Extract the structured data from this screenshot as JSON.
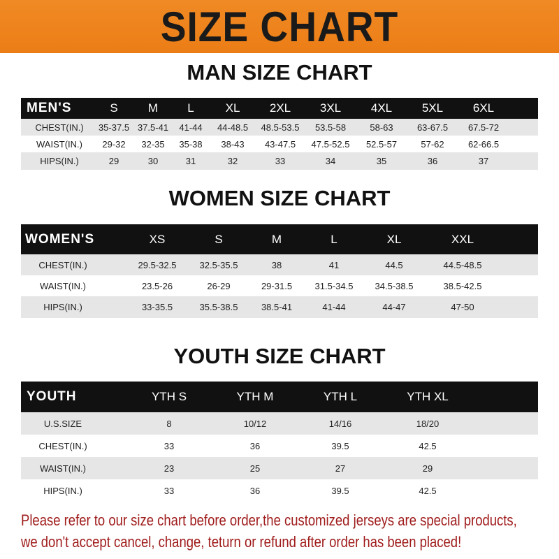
{
  "banner": "SIZE CHART",
  "men": {
    "title": "MAN SIZE CHART",
    "header": [
      "MEN'S",
      "S",
      "M",
      "L",
      "XL",
      "2XL",
      "3XL",
      "4XL",
      "5XL",
      "6XL"
    ],
    "rows": [
      [
        "CHEST(IN.)",
        "35-37.5",
        "37.5-41",
        "41-44",
        "44-48.5",
        "48.5-53.5",
        "53.5-58",
        "58-63",
        "63-67.5",
        "67.5-72"
      ],
      [
        "WAIST(IN.)",
        "29-32",
        "32-35",
        "35-38",
        "38-43",
        "43-47.5",
        "47.5-52.5",
        "52.5-57",
        "57-62",
        "62-66.5"
      ],
      [
        "HIPS(IN.)",
        "29",
        "30",
        "31",
        "32",
        "33",
        "34",
        "35",
        "36",
        "37"
      ]
    ]
  },
  "women": {
    "title": "WOMEN SIZE CHART",
    "header": [
      "WOMEN'S",
      "XS",
      "S",
      "M",
      "L",
      "XL",
      "XXL"
    ],
    "rows": [
      [
        "CHEST(IN.)",
        "29.5-32.5",
        "32.5-35.5",
        "38",
        "41",
        "44.5",
        "44.5-48.5"
      ],
      [
        "WAIST(IN.)",
        "23.5-26",
        "26-29",
        "29-31.5",
        "31.5-34.5",
        "34.5-38.5",
        "38.5-42.5"
      ],
      [
        "HIPS(IN.)",
        "33-35.5",
        "35.5-38.5",
        "38.5-41",
        "41-44",
        "44-47",
        "47-50"
      ]
    ]
  },
  "youth": {
    "title": "YOUTH SIZE CHART",
    "header": [
      "YOUTH",
      "YTH S",
      "YTH M",
      "YTH L",
      "YTH XL"
    ],
    "rows": [
      [
        "U.S.SIZE",
        "8",
        "10/12",
        "14/16",
        "18/20"
      ],
      [
        "CHEST(IN.)",
        "33",
        "36",
        "39.5",
        "42.5"
      ],
      [
        "WAIST(IN.)",
        "23",
        "25",
        "27",
        "29"
      ],
      [
        "HIPS(IN.)",
        "33",
        "36",
        "39.5",
        "42.5"
      ]
    ]
  },
  "notice": {
    "line1": "Please refer to our size chart before order,the customized jerseys are special products,",
    "line2": "we don't accept cancel, change, teturn or refund after order has been placed!"
  },
  "colors": {
    "banner": "#ec7d16",
    "header_row": "#111111",
    "notice": "#a01c1c"
  }
}
